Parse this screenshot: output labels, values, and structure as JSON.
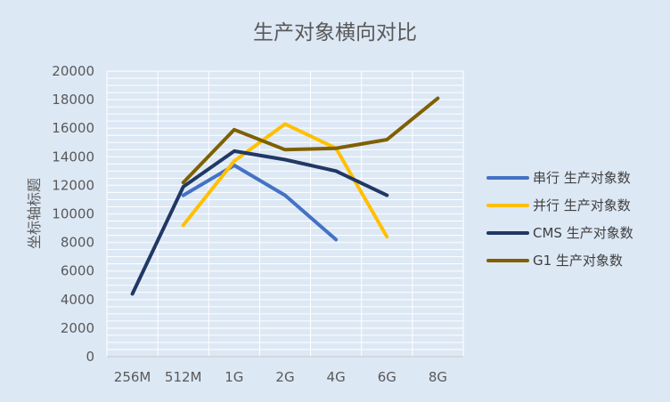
{
  "chart_data": {
    "type": "line",
    "title": "生产对象横向对比",
    "xlabel": "",
    "ylabel": "坐标轴标题",
    "categories": [
      "256M",
      "512M",
      "1G",
      "2G",
      "4G",
      "6G",
      "8G"
    ],
    "ylim": [
      0,
      20000
    ],
    "yticks": [
      0,
      2000,
      4000,
      6000,
      8000,
      10000,
      12000,
      14000,
      16000,
      18000,
      20000
    ],
    "grid": true,
    "legend_position": "right",
    "series": [
      {
        "name": "串行 生产对象数",
        "color": "#4472c4",
        "values": [
          null,
          11300,
          13400,
          11300,
          8200,
          null,
          null
        ]
      },
      {
        "name": "并行 生产对象数",
        "color": "#ffc000",
        "values": [
          null,
          9200,
          13700,
          16300,
          14600,
          8400,
          null
        ]
      },
      {
        "name": "CMS 生产对象数",
        "color": "#203864",
        "values": [
          4400,
          11900,
          14400,
          13800,
          13000,
          11300,
          null
        ]
      },
      {
        "name": "G1 生产对象数",
        "color": "#7f6000",
        "values": [
          null,
          12200,
          15900,
          14500,
          14600,
          15200,
          18100
        ]
      }
    ]
  }
}
